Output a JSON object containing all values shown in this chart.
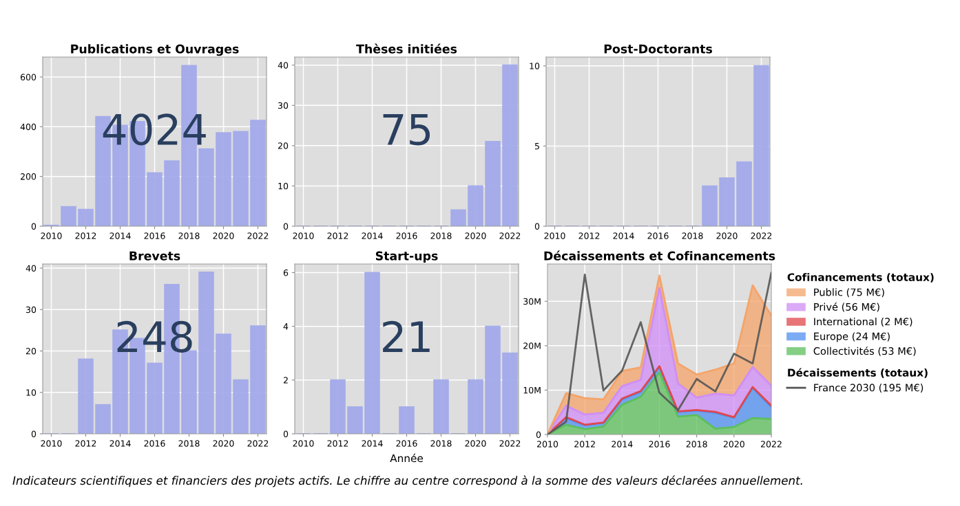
{
  "chart_data": [
    {
      "type": "bar",
      "title": "Publications et Ouvrages",
      "x": [
        2010,
        2011,
        2012,
        2013,
        2014,
        2015,
        2016,
        2017,
        2018,
        2019,
        2020,
        2021,
        2022
      ],
      "values": [
        3,
        78,
        67,
        440,
        405,
        420,
        214,
        262,
        645,
        310,
        375,
        380,
        425
      ],
      "color": "#a3aaea",
      "xlim": [
        2009.5,
        2022.5
      ],
      "xticks": [
        2010,
        2012,
        2014,
        2016,
        2018,
        2020,
        2022
      ],
      "ylim": [
        0,
        680
      ],
      "yticks": [
        0,
        200,
        400,
        600
      ],
      "grid": true,
      "annotations": [
        "4024"
      ]
    },
    {
      "type": "bar",
      "title": "Thèses initiées",
      "x": [
        2010,
        2011,
        2012,
        2013,
        2014,
        2015,
        2016,
        2017,
        2018,
        2019,
        2020,
        2021,
        2022
      ],
      "values": [
        0,
        0,
        0,
        0,
        0,
        0,
        0,
        0,
        0,
        4,
        10,
        21,
        40
      ],
      "color": "#a3aaea",
      "xlim": [
        2009.5,
        2022.5
      ],
      "xticks": [
        2010,
        2012,
        2014,
        2016,
        2018,
        2020,
        2022
      ],
      "ylim": [
        0,
        42
      ],
      "yticks": [
        0,
        10,
        20,
        30,
        40
      ],
      "grid": true,
      "annotations": [
        "75"
      ]
    },
    {
      "type": "bar",
      "title": "Post-Doctorants",
      "x": [
        2010,
        2011,
        2012,
        2013,
        2014,
        2015,
        2016,
        2017,
        2018,
        2019,
        2020,
        2021,
        2022
      ],
      "values": [
        0,
        0,
        0,
        0,
        0,
        0,
        0,
        0,
        0,
        2.5,
        3,
        4,
        10
      ],
      "color": "#a3aaea",
      "xlim": [
        2009.5,
        2022.5
      ],
      "xticks": [
        2010,
        2012,
        2014,
        2016,
        2018,
        2020,
        2022
      ],
      "ylim": [
        0,
        10.55
      ],
      "yticks": [
        0,
        5,
        10
      ],
      "grid": true
    },
    {
      "type": "bar",
      "title": "Brevets",
      "x": [
        2010,
        2011,
        2012,
        2013,
        2014,
        2015,
        2016,
        2017,
        2018,
        2019,
        2020,
        2021,
        2022
      ],
      "values": [
        0,
        0,
        18,
        7,
        25,
        23,
        17,
        36,
        20,
        39,
        24,
        13,
        26
      ],
      "color": "#a3aaea",
      "xlim": [
        2009.5,
        2022.5
      ],
      "xticks": [
        2010,
        2012,
        2014,
        2016,
        2018,
        2020,
        2022
      ],
      "ylim": [
        0,
        41
      ],
      "yticks": [
        0,
        10,
        20,
        30,
        40
      ],
      "grid": true,
      "annotations": [
        "248"
      ]
    },
    {
      "type": "bar",
      "title": "Start-ups",
      "xlabel": "Année",
      "x": [
        2010,
        2011,
        2012,
        2013,
        2014,
        2015,
        2016,
        2017,
        2018,
        2019,
        2020,
        2021,
        2022
      ],
      "values": [
        0,
        0,
        2,
        1,
        6,
        0,
        1,
        0,
        2,
        0,
        2,
        4,
        3
      ],
      "color": "#a3aaea",
      "xlim": [
        2009.5,
        2022.5
      ],
      "xticks": [
        2010,
        2012,
        2014,
        2016,
        2018,
        2020,
        2022
      ],
      "ylim": [
        0,
        6.32
      ],
      "yticks": [
        0,
        2,
        4,
        6
      ],
      "grid": true,
      "annotations": [
        "21"
      ]
    },
    {
      "type": "area",
      "title": "Décaissements et Cofinancements",
      "stacked": true,
      "legend": "right",
      "legend_title": [
        "Cofinancements (totaux)",
        "Décaissements (totaux)"
      ],
      "x": [
        2010,
        2011,
        2012,
        2013,
        2014,
        2015,
        2016,
        2017,
        2018,
        2019,
        2020,
        2021,
        2022
      ],
      "xlim": [
        2010,
        2022
      ],
      "xticks": [
        2010,
        2012,
        2014,
        2016,
        2018,
        2020,
        2022
      ],
      "ylim": [
        0,
        38400000
      ],
      "yticks": [
        0,
        {
          "value": 10000000,
          "label": "10M"
        },
        {
          "value": 20000000,
          "label": "20M"
        },
        {
          "value": 30000000,
          "label": "30M"
        }
      ],
      "grid": true,
      "series": [
        {
          "name": "Collectivités (53 M€)",
          "color": "#5cbf5c",
          "values": [
            0,
            2200000,
            1200000,
            1800000,
            6700000,
            8500000,
            14000000,
            4000000,
            4400000,
            1300000,
            1700000,
            3700000,
            3500000
          ]
        },
        {
          "name": "Europe (24 M€)",
          "color": "#4f8ff0",
          "values": [
            0,
            1500000,
            900000,
            800000,
            1200000,
            1100000,
            1200000,
            1100000,
            1000000,
            3600000,
            2100000,
            6800000,
            2700000
          ]
        },
        {
          "name": "International (2 M€)",
          "color": "#e0474c",
          "values": [
            0,
            200000,
            100000,
            100000,
            200000,
            200000,
            200000,
            100000,
            100000,
            200000,
            100000,
            200000,
            300000
          ]
        },
        {
          "name": "Privé (56 M€)",
          "color": "#d08ef5",
          "values": [
            0,
            2600000,
            2300000,
            2200000,
            2800000,
            2500000,
            17600000,
            6300000,
            2800000,
            4100000,
            4900000,
            4500000,
            4500000
          ]
        },
        {
          "name": "Public (75 M€)",
          "color": "#f4a46a",
          "values": [
            0,
            2800000,
            3700000,
            3000000,
            3400000,
            2800000,
            2800000,
            4500000,
            5200000,
            5400000,
            7200000,
            18400000,
            15800000
          ]
        },
        {
          "name": "France 2030 (195 M€)",
          "type": "line",
          "color": "#555555",
          "values": [
            0,
            2900000,
            36000000,
            9900000,
            14400000,
            25300000,
            9400000,
            5500000,
            12500000,
            9700000,
            18200000,
            16000000,
            36400000
          ]
        }
      ],
      "annotations": [
        "Indicateurs scientifiques et financiers des projets actifs. Le chiffre au centre correspond à la somme des valeurs déclarées annuellement."
      ]
    }
  ]
}
